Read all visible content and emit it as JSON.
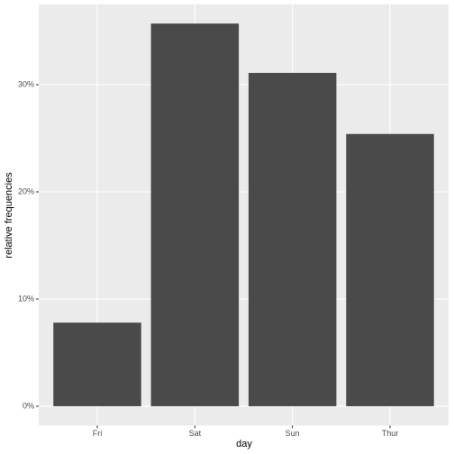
{
  "chart_data": {
    "type": "bar",
    "x_label": "day",
    "y_label": "relative frequencies",
    "categories": [
      "Fri",
      "Sat",
      "Sun",
      "Thur"
    ],
    "values": [
      7.8,
      35.7,
      31.1,
      25.4
    ],
    "color": "#4a4a4a",
    "ylim": [
      -1.8,
      37.5
    ],
    "yticks": [
      {
        "value": 0,
        "label": "0%"
      },
      {
        "value": 10,
        "label": "10%"
      },
      {
        "value": 20,
        "label": "20%"
      },
      {
        "value": 30,
        "label": "30%"
      }
    ],
    "grid": true
  }
}
